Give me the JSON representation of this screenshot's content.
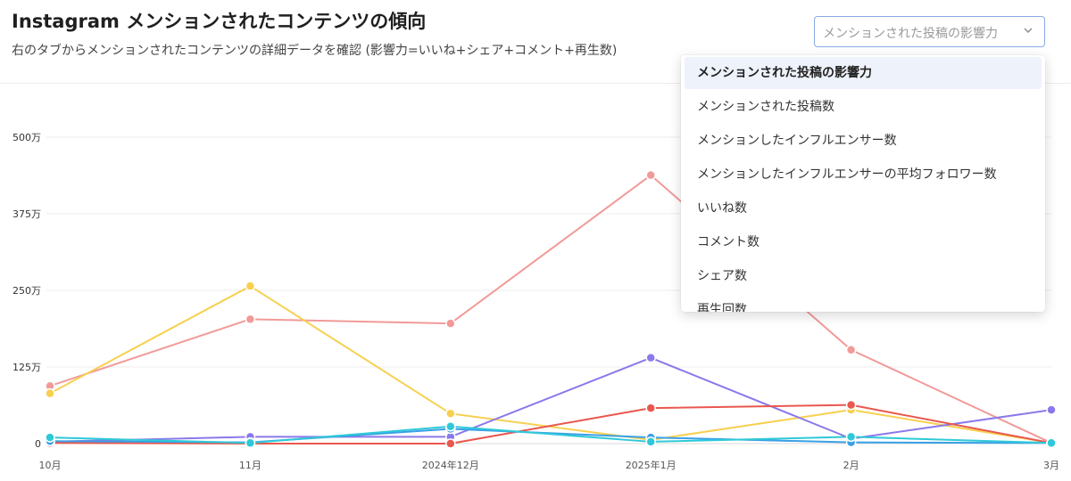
{
  "header": {
    "title": "Instagram メンションされたコンテンツの傾向",
    "subtitle": "右のタブからメンションされたコンテンツの詳細データを確認 (影響力=いいね+シェア+コメント+再生数)"
  },
  "metric_select": {
    "value": "メンションされた投稿の影響力",
    "chevron_icon": "chevron-down-icon",
    "options": [
      "メンションされた投稿の影響力",
      "メンションされた投稿数",
      "メンションしたインフルエンサー数",
      "メンションしたインフルエンサーの平均フォロワー数",
      "いいね数",
      "コメント数",
      "シェア数",
      "再生回数"
    ],
    "selected_index": 0
  },
  "chart_data": {
    "type": "line",
    "categories": [
      "10月",
      "11月",
      "2024年12月",
      "2025年1月",
      "2月",
      "3月"
    ],
    "y_ticks": [
      "0",
      "125万",
      "250万",
      "375万",
      "500万"
    ],
    "ylim": [
      0,
      5000000
    ],
    "grid": true,
    "series": [
      {
        "color": "#f19a98",
        "values": [
          940000,
          2030000,
          1960000,
          4380000,
          1530000,
          10000
        ]
      },
      {
        "color": "#f7d04f",
        "values": [
          820000,
          2570000,
          490000,
          60000,
          550000,
          10000
        ]
      },
      {
        "color": "#8a79ea",
        "values": [
          30000,
          110000,
          110000,
          1400000,
          80000,
          550000
        ]
      },
      {
        "color": "#e9574e",
        "values": [
          10000,
          0,
          0,
          580000,
          630000,
          10000
        ]
      },
      {
        "color": "#3aa0e6",
        "values": [
          40000,
          20000,
          240000,
          100000,
          20000,
          10000
        ]
      },
      {
        "color": "#2ec9d8",
        "values": [
          100000,
          10000,
          280000,
          30000,
          110000,
          10000
        ]
      }
    ]
  }
}
